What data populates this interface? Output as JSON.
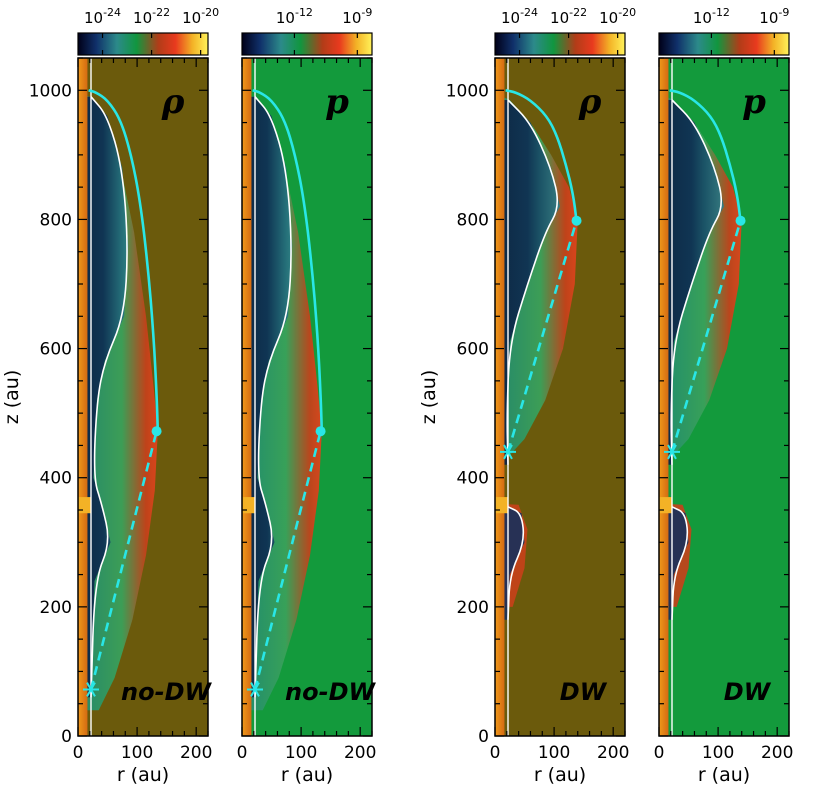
{
  "chart_data": {
    "type": "heatmap",
    "x_axis": {
      "label": "r (au)",
      "range": [
        0,
        220
      ],
      "ticks": [
        0,
        100,
        200
      ],
      "minor_step": 20
    },
    "y_axis": {
      "label": "z (au)",
      "range": [
        0,
        1050
      ],
      "ticks": [
        0,
        200,
        400,
        600,
        800,
        1000
      ],
      "minor_step": 50
    },
    "colorbars": {
      "rho": {
        "ticks": [
          "10^-24",
          "10^-22",
          "10^-20"
        ],
        "tick_positions": [
          -24,
          -22,
          -20
        ],
        "range": [
          -25,
          -19.7
        ]
      },
      "p": {
        "ticks": [
          "10^-12",
          "10^-9"
        ],
        "tick_positions": [
          -12,
          -9
        ],
        "range": [
          -14.5,
          -8.3
        ]
      }
    },
    "colormap": [
      "#000018",
      "#10306a",
      "#2c8a8a",
      "#11963f",
      "#b23c18",
      "#e83a1e",
      "#f3b226",
      "#fff25a"
    ],
    "panels": [
      {
        "quantity": "ρ",
        "case": "no-DW",
        "colorbar": "rho",
        "background": "#6b5a0c",
        "shell": [
          [
            0,
            995
          ],
          [
            20,
            990
          ],
          [
            45,
            960
          ],
          [
            70,
            890
          ],
          [
            95,
            780
          ],
          [
            115,
            650
          ],
          [
            128,
            540
          ],
          [
            135,
            472
          ],
          [
            130,
            380
          ],
          [
            115,
            280
          ],
          [
            92,
            180
          ],
          [
            62,
            90
          ],
          [
            35,
            40
          ]
        ],
        "contact": [
          [
            22,
            990
          ],
          [
            50,
            960
          ],
          [
            75,
            880
          ],
          [
            85,
            760
          ],
          [
            78,
            650
          ],
          [
            45,
            580
          ],
          [
            32,
            520
          ],
          [
            26,
            400
          ],
          [
            40,
            360
          ],
          [
            55,
            300
          ],
          [
            28,
            240
          ],
          [
            22,
            60
          ]
        ],
        "front": [
          [
            18,
            1000
          ],
          [
            30,
            997
          ],
          [
            50,
            985
          ],
          [
            72,
            955
          ],
          [
            90,
            900
          ],
          [
            105,
            830
          ],
          [
            118,
            730
          ],
          [
            128,
            620
          ],
          [
            133,
            530
          ],
          [
            135,
            472
          ]
        ],
        "marker": [
          133,
          472
        ],
        "star": [
          22,
          72
        ],
        "injection": [
          [
            0,
            345
          ],
          [
            22,
            370
          ]
        ]
      },
      {
        "quantity": "p",
        "case": "no-DW",
        "colorbar": "p",
        "background": "#139a3c",
        "shell": [
          [
            0,
            995
          ],
          [
            20,
            990
          ],
          [
            45,
            960
          ],
          [
            70,
            890
          ],
          [
            95,
            780
          ],
          [
            115,
            650
          ],
          [
            128,
            540
          ],
          [
            135,
            472
          ],
          [
            130,
            380
          ],
          [
            115,
            280
          ],
          [
            92,
            180
          ],
          [
            62,
            90
          ],
          [
            35,
            40
          ]
        ],
        "contact": [
          [
            22,
            990
          ],
          [
            50,
            960
          ],
          [
            75,
            880
          ],
          [
            85,
            760
          ],
          [
            78,
            650
          ],
          [
            45,
            580
          ],
          [
            32,
            520
          ],
          [
            26,
            400
          ],
          [
            40,
            360
          ],
          [
            55,
            300
          ],
          [
            28,
            240
          ],
          [
            22,
            60
          ]
        ],
        "front": [
          [
            18,
            1000
          ],
          [
            30,
            997
          ],
          [
            50,
            985
          ],
          [
            72,
            955
          ],
          [
            90,
            900
          ],
          [
            105,
            830
          ],
          [
            118,
            730
          ],
          [
            128,
            620
          ],
          [
            133,
            530
          ],
          [
            135,
            472
          ]
        ],
        "marker": [
          133,
          472
        ],
        "star": [
          22,
          72
        ],
        "injection": [
          [
            0,
            345
          ],
          [
            22,
            370
          ]
        ]
      },
      {
        "quantity": "ρ",
        "case": "DW",
        "colorbar": "rho",
        "background": "#6b5a0c",
        "shell": [
          [
            0,
            995
          ],
          [
            25,
            985
          ],
          [
            60,
            950
          ],
          [
            95,
            900
          ],
          [
            125,
            850
          ],
          [
            140,
            798
          ],
          [
            135,
            700
          ],
          [
            115,
            600
          ],
          [
            85,
            520
          ],
          [
            50,
            460
          ],
          [
            20,
            430
          ]
        ],
        "contact": [
          [
            22,
            985
          ],
          [
            60,
            950
          ],
          [
            95,
            880
          ],
          [
            110,
            820
          ],
          [
            85,
            780
          ],
          [
            55,
            700
          ],
          [
            25,
            610
          ],
          [
            20,
            500
          ],
          [
            22,
            420
          ]
        ],
        "front": [
          [
            18,
            1000
          ],
          [
            35,
            997
          ],
          [
            60,
            985
          ],
          [
            88,
            960
          ],
          [
            105,
            930
          ],
          [
            120,
            885
          ],
          [
            132,
            840
          ],
          [
            138,
            798
          ]
        ],
        "marker": [
          138,
          798
        ],
        "star": [
          22,
          440
        ],
        "lower": {
          "contact": [
            [
              22,
              355
            ],
            [
              45,
              345
            ],
            [
              50,
              300
            ],
            [
              25,
              250
            ],
            [
              22,
              180
            ]
          ],
          "shell": [
            [
              0,
              360
            ],
            [
              40,
              358
            ],
            [
              55,
              320
            ],
            [
              50,
              260
            ],
            [
              30,
              200
            ]
          ]
        },
        "injection": [
          [
            0,
            345
          ],
          [
            22,
            370
          ]
        ]
      },
      {
        "quantity": "p",
        "case": "DW",
        "colorbar": "p",
        "background": "#139a3c",
        "shell": [
          [
            0,
            995
          ],
          [
            25,
            985
          ],
          [
            60,
            950
          ],
          [
            95,
            900
          ],
          [
            125,
            850
          ],
          [
            140,
            798
          ],
          [
            135,
            700
          ],
          [
            115,
            600
          ],
          [
            85,
            520
          ],
          [
            50,
            460
          ],
          [
            20,
            430
          ]
        ],
        "contact": [
          [
            22,
            985
          ],
          [
            60,
            950
          ],
          [
            95,
            880
          ],
          [
            110,
            820
          ],
          [
            85,
            780
          ],
          [
            55,
            700
          ],
          [
            25,
            610
          ],
          [
            20,
            500
          ],
          [
            22,
            420
          ]
        ],
        "front": [
          [
            18,
            1000
          ],
          [
            35,
            997
          ],
          [
            60,
            985
          ],
          [
            88,
            960
          ],
          [
            105,
            930
          ],
          [
            120,
            885
          ],
          [
            132,
            840
          ],
          [
            138,
            798
          ]
        ],
        "marker": [
          138,
          798
        ],
        "star": [
          22,
          440
        ],
        "lower": {
          "contact": [
            [
              22,
              355
            ],
            [
              45,
              345
            ],
            [
              50,
              300
            ],
            [
              25,
              250
            ],
            [
              22,
              180
            ]
          ],
          "shell": [
            [
              0,
              360
            ],
            [
              40,
              358
            ],
            [
              55,
              320
            ],
            [
              50,
              260
            ],
            [
              30,
              200
            ]
          ]
        },
        "injection": [
          [
            0,
            345
          ],
          [
            22,
            370
          ]
        ]
      }
    ]
  }
}
